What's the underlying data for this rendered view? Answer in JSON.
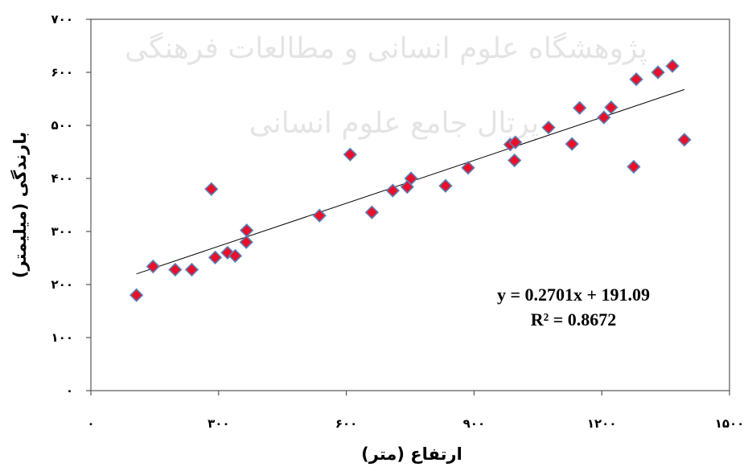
{
  "chart_data": {
    "type": "scatter",
    "xlabel": "ارتفاع (متر)",
    "ylabel": "بارندگی (میلیمتر)",
    "xlim": [
      0,
      1500
    ],
    "ylim": [
      0,
      700
    ],
    "x_ticks": [
      0,
      300,
      600,
      900,
      1200,
      1500
    ],
    "x_tick_labels": [
      "۰",
      "۳۰۰",
      "۶۰۰",
      "۹۰۰",
      "۱۲۰۰",
      "۱۵۰۰"
    ],
    "y_ticks": [
      0,
      100,
      200,
      300,
      400,
      500,
      600,
      700
    ],
    "y_tick_labels": [
      "۰",
      "۱۰۰",
      "۲۰۰",
      "۳۰۰",
      "۴۰۰",
      "۵۰۰",
      "۶۰۰",
      "۷۰۰"
    ],
    "grid": false,
    "marker_color": "#e8102a",
    "marker_edge_color": "#5a7fb6",
    "series": [
      {
        "points": [
          [
            107,
            180
          ],
          [
            146,
            234
          ],
          [
            198,
            228
          ],
          [
            237,
            228
          ],
          [
            283,
            380
          ],
          [
            292,
            251
          ],
          [
            321,
            260
          ],
          [
            339,
            254
          ],
          [
            365,
            280
          ],
          [
            366,
            302
          ],
          [
            537,
            330
          ],
          [
            609,
            445
          ],
          [
            660,
            336
          ],
          [
            709,
            377
          ],
          [
            743,
            384
          ],
          [
            752,
            400
          ],
          [
            833,
            386
          ],
          [
            886,
            420
          ],
          [
            985,
            464
          ],
          [
            995,
            434
          ],
          [
            997,
            468
          ],
          [
            1075,
            496
          ],
          [
            1130,
            465
          ],
          [
            1148,
            533
          ],
          [
            1205,
            515
          ],
          [
            1222,
            534
          ],
          [
            1275,
            422
          ],
          [
            1281,
            587
          ],
          [
            1332,
            600
          ],
          [
            1366,
            612
          ],
          [
            1394,
            473
          ]
        ]
      }
    ],
    "trendline": {
      "slope": 0.2701,
      "intercept": 191.09,
      "x_range": [
        107,
        1394
      ]
    },
    "annotation": [
      "y = 0.2701x + 191.09",
      "R² = 0.8672"
    ]
  },
  "watermark": {
    "line1": "پژوهشگاه علوم انسانی و مطالعات فرهنگی",
    "line2": "پرتال جامع علوم انسانی"
  }
}
